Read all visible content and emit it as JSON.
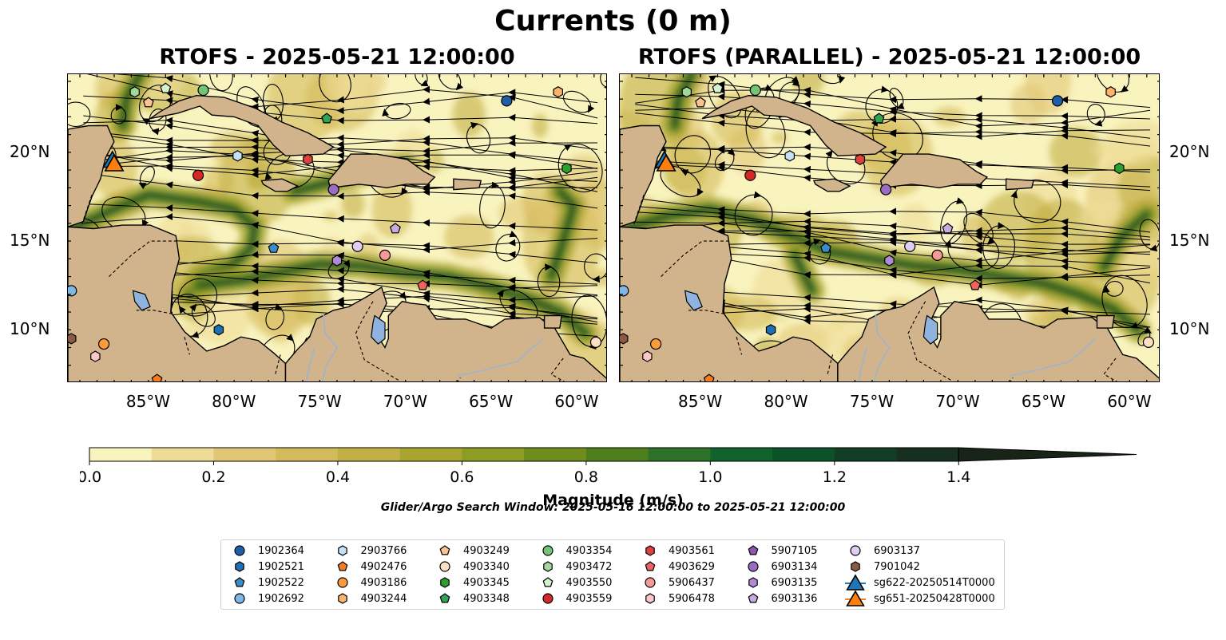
{
  "suptitle": "Currents (0 m)",
  "panels": [
    {
      "title": "RTOFS - 2025-05-21 12:00:00"
    },
    {
      "title": "RTOFS (PARALLEL) - 2025-05-21 12:00:00"
    }
  ],
  "axes": {
    "lon_labels": [
      "85°W",
      "80°W",
      "75°W",
      "70°W",
      "65°W",
      "60°W"
    ],
    "lon_values": [
      -85,
      -80,
      -75,
      -70,
      -65,
      -60
    ],
    "lat_labels": [
      "20°N",
      "15°N",
      "10°N"
    ],
    "lat_values": [
      20,
      15,
      10
    ],
    "lon_range": [
      -89.7,
      -58.2
    ],
    "lat_range": [
      7.0,
      24.4
    ]
  },
  "colorbar": {
    "label": "Magnitude (m/s)",
    "tick_labels": [
      "0.0",
      "0.2",
      "0.4",
      "0.6",
      "0.8",
      "1.0",
      "1.2",
      "1.4"
    ],
    "ticks": [
      0.0,
      0.2,
      0.4,
      0.6,
      0.8,
      1.0,
      1.2,
      1.4
    ],
    "range": [
      0.0,
      1.5
    ],
    "extend": "max",
    "colors": [
      "#f9f3be",
      "#eedc96",
      "#e1c775",
      "#d3ba5a",
      "#c2af45",
      "#a9a330",
      "#8d9c22",
      "#6f8d1c",
      "#4f7f1a",
      "#2d7028",
      "#10632c",
      "#0c5228",
      "#113e24",
      "#172f1e",
      "#182417"
    ]
  },
  "search_window": "Glider/Argo Search Window: 2025-05-16 12:00:00 to 2025-05-21 12:00:00",
  "legend": {
    "entries": [
      {
        "label": "1902364",
        "marker": "circle",
        "color": "#1f5fa8"
      },
      {
        "label": "1902521",
        "marker": "hexagon",
        "color": "#1f6fb5"
      },
      {
        "label": "1902522",
        "marker": "pentagon",
        "color": "#3b8ccb"
      },
      {
        "label": "1902692",
        "marker": "circle",
        "color": "#7fb8e6"
      },
      {
        "label": "2903766",
        "marker": "hexagon",
        "color": "#c6e0f5"
      },
      {
        "label": "4902476",
        "marker": "pentagon",
        "color": "#f57c1f"
      },
      {
        "label": "4903186",
        "marker": "circle",
        "color": "#fd9a3a"
      },
      {
        "label": "4903244",
        "marker": "hexagon",
        "color": "#fdb36b"
      },
      {
        "label": "4903249",
        "marker": "pentagon",
        "color": "#fcc28f"
      },
      {
        "label": "4903340",
        "marker": "circle",
        "color": "#fde0c3"
      },
      {
        "label": "4903345",
        "marker": "hexagon",
        "color": "#2ca02c"
      },
      {
        "label": "4903348",
        "marker": "pentagon",
        "color": "#31a354"
      },
      {
        "label": "4903354",
        "marker": "circle",
        "color": "#74c476"
      },
      {
        "label": "4903472",
        "marker": "hexagon",
        "color": "#a1d99b"
      },
      {
        "label": "4903550",
        "marker": "pentagon",
        "color": "#d4f2cf"
      },
      {
        "label": "4903559",
        "marker": "circle",
        "color": "#d62728"
      },
      {
        "label": "4903561",
        "marker": "hexagon",
        "color": "#e0413e"
      },
      {
        "label": "4903629",
        "marker": "pentagon",
        "color": "#ef6461"
      },
      {
        "label": "5906437",
        "marker": "circle",
        "color": "#f59a96"
      },
      {
        "label": "5906478",
        "marker": "hexagon",
        "color": "#fcc8c6"
      },
      {
        "label": "5907105",
        "marker": "pentagon",
        "color": "#8c56b8"
      },
      {
        "label": "6903134",
        "marker": "circle",
        "color": "#9a6cc4"
      },
      {
        "label": "6903135",
        "marker": "hexagon",
        "color": "#b08ad2"
      },
      {
        "label": "6903136",
        "marker": "pentagon",
        "color": "#c7aae2"
      },
      {
        "label": "6903137",
        "marker": "circle",
        "color": "#e0cdf2"
      },
      {
        "label": "7901042",
        "marker": "hexagon",
        "color": "#8c5a44"
      },
      {
        "label": "sg622-20250514T0000",
        "marker": "triangle",
        "color": "#1f77b4"
      },
      {
        "label": "sg651-20250428T0000",
        "marker": "triangle",
        "color": "#ff7f0e"
      }
    ]
  },
  "colors": {
    "land": "#d2b48c",
    "lake": "#8fb3de",
    "river": "#9db4cf",
    "streamline": "#000000",
    "glider_sg622": "#1f77b4",
    "glider_sg651": "#ff7f0e"
  },
  "markers": [
    {
      "id": "1902364",
      "panel_positions": [
        [
          -64.1,
          22.9
        ],
        [
          -64.2,
          22.9
        ]
      ]
    },
    {
      "id": "4903559",
      "panel_positions": [
        [
          -82.1,
          18.7
        ],
        [
          -82.1,
          18.7
        ]
      ]
    },
    {
      "id": "6903134",
      "panel_positions": [
        [
          -74.2,
          17.9
        ],
        [
          -74.2,
          17.9
        ]
      ]
    },
    {
      "id": "4903354",
      "panel_positions": [
        [
          -81.8,
          23.5
        ],
        [
          -81.8,
          23.5
        ]
      ]
    },
    {
      "id": "4903345",
      "panel_positions": [
        [
          -60.6,
          19.1
        ],
        [
          -60.6,
          19.1
        ]
      ]
    },
    {
      "id": "2903766",
      "panel_positions": [
        [
          -79.8,
          19.8
        ],
        [
          -79.8,
          19.8
        ]
      ]
    },
    {
      "id": "4903561",
      "panel_positions": [
        [
          -75.7,
          19.6
        ],
        [
          -75.7,
          19.6
        ]
      ]
    },
    {
      "id": "4903348",
      "panel_positions": [
        [
          -74.6,
          21.9
        ],
        [
          -74.6,
          21.9
        ]
      ]
    },
    {
      "id": "4903244",
      "panel_positions": [
        [
          -61.1,
          23.4
        ],
        [
          -61.1,
          23.4
        ]
      ]
    },
    {
      "id": "4903249",
      "panel_positions": [
        [
          -85.0,
          22.8
        ],
        [
          -85.0,
          22.8
        ]
      ]
    },
    {
      "id": "4903472",
      "panel_positions": [
        [
          -85.8,
          23.4
        ],
        [
          -85.8,
          23.4
        ]
      ]
    },
    {
      "id": "4903550",
      "panel_positions": [
        [
          -84.0,
          23.6
        ],
        [
          -84.0,
          23.6
        ]
      ]
    },
    {
      "id": "1902522",
      "panel_positions": [
        [
          -77.7,
          14.6
        ],
        [
          -77.7,
          14.6
        ]
      ]
    },
    {
      "id": "6903136",
      "panel_positions": [
        [
          -70.6,
          15.7
        ],
        [
          -70.6,
          15.7
        ]
      ]
    },
    {
      "id": "6903135",
      "panel_positions": [
        [
          -74.0,
          13.9
        ],
        [
          -74.0,
          13.9
        ]
      ]
    },
    {
      "id": "6903137",
      "panel_positions": [
        [
          -72.8,
          14.7
        ],
        [
          -72.8,
          14.7
        ]
      ]
    },
    {
      "id": "5906437",
      "panel_positions": [
        [
          -71.2,
          14.2
        ],
        [
          -71.2,
          14.2
        ]
      ]
    },
    {
      "id": "4903629",
      "panel_positions": [
        [
          -69.0,
          12.5
        ],
        [
          -69.0,
          12.5
        ]
      ]
    },
    {
      "id": "1902521",
      "panel_positions": [
        [
          -80.9,
          10.0
        ],
        [
          -80.9,
          10.0
        ]
      ]
    },
    {
      "id": "1902692",
      "panel_positions": [
        [
          -89.5,
          12.2
        ],
        [
          -89.5,
          12.2
        ]
      ]
    },
    {
      "id": "7901042",
      "panel_positions": [
        [
          -89.5,
          9.5
        ],
        [
          -89.5,
          9.5
        ]
      ]
    },
    {
      "id": "4903186",
      "panel_positions": [
        [
          -87.6,
          9.2
        ],
        [
          -87.6,
          9.2
        ]
      ]
    },
    {
      "id": "5906478",
      "panel_positions": [
        [
          -88.1,
          8.5
        ],
        [
          -88.1,
          8.5
        ]
      ]
    },
    {
      "id": "4902476",
      "panel_positions": [
        [
          -84.5,
          7.2
        ],
        [
          -84.5,
          7.2
        ]
      ]
    },
    {
      "id": "4903340",
      "panel_positions": [
        [
          -58.9,
          9.3
        ],
        [
          -58.9,
          9.3
        ]
      ]
    }
  ],
  "gliders": [
    {
      "id": "sg622-20250514T0000",
      "position": [
        -87.1,
        19.6
      ]
    },
    {
      "id": "sg651-20250428T0000",
      "position": [
        -87.0,
        19.4
      ]
    }
  ]
}
